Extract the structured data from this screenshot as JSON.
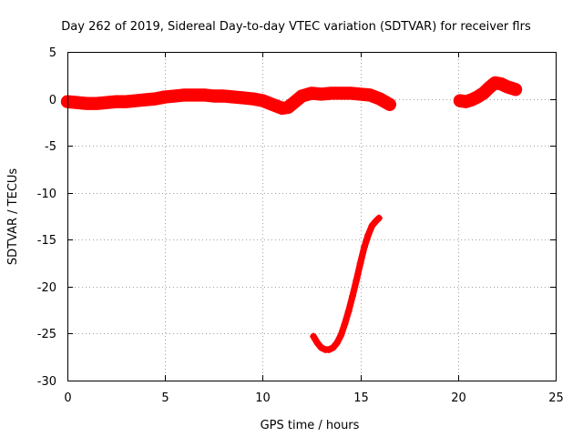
{
  "chart_data": {
    "type": "scatter",
    "title": "Day 262 of 2019, Sidereal Day-to-day VTEC variation (SDTVAR) for receiver flrs",
    "xlabel": "GPS time / hours",
    "ylabel": "SDTVAR / TECUs",
    "xlim": [
      0,
      25
    ],
    "ylim": [
      -30,
      5
    ],
    "xticks": [
      0,
      5,
      10,
      15,
      20,
      25
    ],
    "yticks": [
      5,
      0,
      -5,
      -10,
      -15,
      -20,
      -25,
      -30
    ],
    "grid": true,
    "marker": "+",
    "color": "#ff0000",
    "series": [
      {
        "name": "segment-1",
        "band": 1.0,
        "x": [
          0.0,
          0.5,
          1.0,
          1.5,
          2.0,
          2.5,
          3.0,
          3.5,
          4.0,
          4.5,
          5.0,
          5.5,
          6.0,
          6.5,
          7.0,
          7.5,
          8.0,
          8.5,
          9.0,
          9.5,
          10.0,
          10.5,
          11.0,
          11.3,
          11.6,
          12.0,
          12.5,
          13.0,
          13.5,
          14.0,
          14.5,
          15.0,
          15.5,
          16.0,
          16.5
        ],
        "y": [
          -0.3,
          -0.4,
          -0.5,
          -0.5,
          -0.4,
          -0.3,
          -0.3,
          -0.2,
          -0.1,
          0.0,
          0.2,
          0.3,
          0.4,
          0.4,
          0.4,
          0.3,
          0.3,
          0.2,
          0.1,
          0.0,
          -0.2,
          -0.6,
          -1.0,
          -0.9,
          -0.4,
          0.3,
          0.6,
          0.5,
          0.6,
          0.6,
          0.6,
          0.5,
          0.4,
          0.0,
          -0.6
        ]
      },
      {
        "name": "segment-2",
        "band": 0.5,
        "x": [
          12.6,
          12.8,
          13.0,
          13.2,
          13.4,
          13.6,
          13.8,
          14.0,
          14.2,
          14.4,
          14.6,
          14.8,
          15.0,
          15.2,
          15.4,
          15.6,
          15.8,
          15.95
        ],
        "y": [
          -25.3,
          -26.0,
          -26.5,
          -26.7,
          -26.7,
          -26.5,
          -26.0,
          -25.2,
          -24.0,
          -22.6,
          -21.0,
          -19.3,
          -17.5,
          -15.8,
          -14.5,
          -13.5,
          -13.0,
          -12.7
        ]
      },
      {
        "name": "segment-3",
        "band": 1.0,
        "x": [
          20.1,
          20.4,
          20.7,
          21.0,
          21.3,
          21.6,
          21.9,
          22.2,
          22.5,
          22.8,
          22.95
        ],
        "y": [
          -0.2,
          -0.3,
          -0.1,
          0.2,
          0.6,
          1.2,
          1.7,
          1.6,
          1.3,
          1.1,
          1.0
        ]
      }
    ]
  }
}
